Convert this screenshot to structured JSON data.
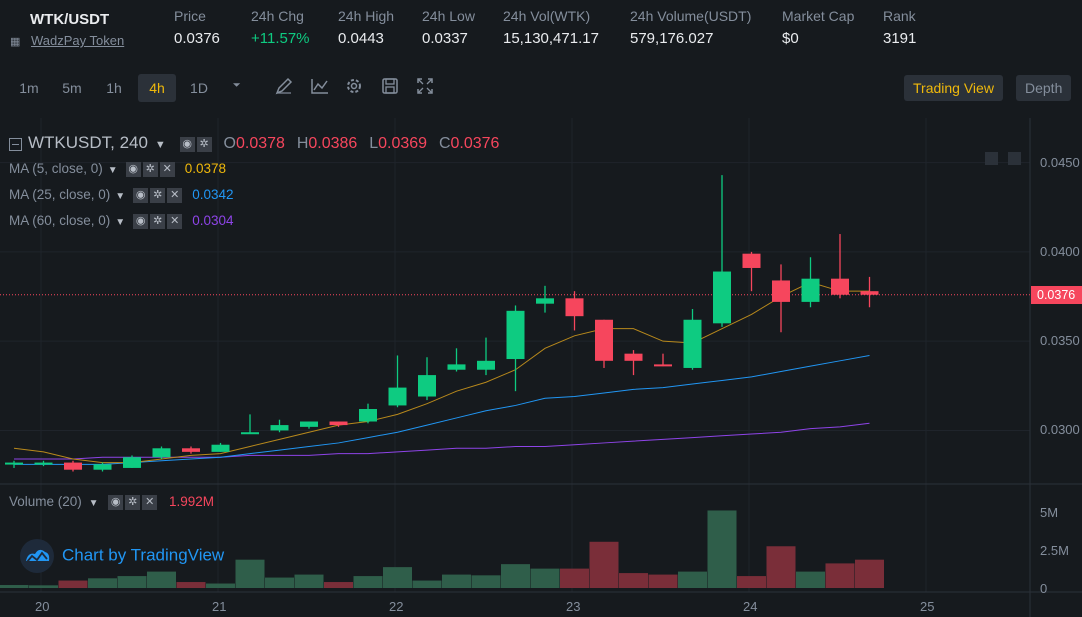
{
  "ticker": {
    "pair": "WTK/USDT",
    "token_name": "WadzPay Token",
    "stats": [
      {
        "label": "Price",
        "value": "0.0376",
        "trend": "neutral"
      },
      {
        "label": "24h Chg",
        "value": "+11.57%",
        "trend": "up"
      },
      {
        "label": "24h High",
        "value": "0.0443",
        "trend": "neutral"
      },
      {
        "label": "24h Low",
        "value": "0.0337",
        "trend": "neutral"
      },
      {
        "label": "24h Vol(WTK)",
        "value": "15,130,471.17",
        "trend": "neutral"
      },
      {
        "label": "24h Volume(USDT)",
        "value": "579,176.027",
        "trend": "neutral"
      },
      {
        "label": "Market Cap",
        "value": "$0",
        "trend": "neutral"
      },
      {
        "label": "Rank",
        "value": "3191",
        "trend": "neutral"
      }
    ]
  },
  "toolbar": {
    "timeframes": [
      "1m",
      "5m",
      "1h",
      "4h",
      "1D"
    ],
    "active_timeframe": "4h",
    "dropdown_icon": "caret-down-icon",
    "tools": [
      "pencil-icon",
      "line-chart-icon",
      "gear-icon",
      "save-icon",
      "expand-icon"
    ],
    "views": [
      "Trading View",
      "Depth"
    ],
    "active_view": "Trading View"
  },
  "legend": {
    "symbol": "WTKUSDT, 240",
    "o_label": "O",
    "o": "0.0378",
    "h_label": "H",
    "h": "0.0386",
    "l_label": "L",
    "l": "0.0369",
    "c_label": "C",
    "c": "0.0376"
  },
  "ma": [
    {
      "label": "MA (5, close, 0)",
      "value": "0.0378",
      "color": "#f0b90b"
    },
    {
      "label": "MA (25, close, 0)",
      "value": "0.0342",
      "color": "#2196f3"
    },
    {
      "label": "MA (60, close, 0)",
      "value": "0.0304",
      "color": "#8e44e8"
    }
  ],
  "volume_legend": {
    "label": "Volume (20)",
    "value": "1.992M"
  },
  "price_axis": [
    "0.0450",
    "0.0400",
    "0.0350",
    "0.0300"
  ],
  "current_price_tag": "0.0376",
  "volume_axis": [
    "5M",
    "2.5M",
    "0"
  ],
  "time_axis": [
    "20",
    "21",
    "22",
    "23",
    "24",
    "25"
  ],
  "brand": "Chart by TradingView",
  "colors": {
    "up": "#0ecb81",
    "down": "#f6465d",
    "accent": "#f0b90b",
    "bg": "#161a1e"
  },
  "chart_data": {
    "type": "candlestick",
    "ylim": [
      0.027,
      0.0475
    ],
    "volume_ylim": [
      0,
      5500000
    ],
    "candles": [
      {
        "o": 0.0281,
        "h": 0.0283,
        "l": 0.0279,
        "c": 0.0282,
        "vol": 200000
      },
      {
        "o": 0.0281,
        "h": 0.0283,
        "l": 0.028,
        "c": 0.0282,
        "vol": 180000
      },
      {
        "o": 0.0282,
        "h": 0.0283,
        "l": 0.0277,
        "c": 0.0278,
        "vol": 500000
      },
      {
        "o": 0.0278,
        "h": 0.0282,
        "l": 0.0277,
        "c": 0.0281,
        "vol": 650000
      },
      {
        "o": 0.0279,
        "h": 0.0286,
        "l": 0.0279,
        "c": 0.0285,
        "vol": 800000
      },
      {
        "o": 0.0285,
        "h": 0.0291,
        "l": 0.0284,
        "c": 0.029,
        "vol": 1100000
      },
      {
        "o": 0.029,
        "h": 0.0291,
        "l": 0.0287,
        "c": 0.0288,
        "vol": 400000
      },
      {
        "o": 0.0288,
        "h": 0.0293,
        "l": 0.0288,
        "c": 0.0292,
        "vol": 300000
      },
      {
        "o": 0.0299,
        "h": 0.0309,
        "l": 0.0298,
        "c": 0.0299,
        "vol": 1900000
      },
      {
        "o": 0.03,
        "h": 0.0306,
        "l": 0.0299,
        "c": 0.0303,
        "vol": 700000
      },
      {
        "o": 0.0302,
        "h": 0.0305,
        "l": 0.0301,
        "c": 0.0305,
        "vol": 900000
      },
      {
        "o": 0.0305,
        "h": 0.0305,
        "l": 0.0302,
        "c": 0.0303,
        "vol": 400000
      },
      {
        "o": 0.0305,
        "h": 0.0315,
        "l": 0.0304,
        "c": 0.0312,
        "vol": 800000
      },
      {
        "o": 0.0314,
        "h": 0.0342,
        "l": 0.0313,
        "c": 0.0324,
        "vol": 1400000
      },
      {
        "o": 0.0319,
        "h": 0.0341,
        "l": 0.0317,
        "c": 0.0331,
        "vol": 500000
      },
      {
        "o": 0.0334,
        "h": 0.0346,
        "l": 0.0333,
        "c": 0.0337,
        "vol": 900000
      },
      {
        "o": 0.0334,
        "h": 0.0352,
        "l": 0.0331,
        "c": 0.0339,
        "vol": 850000
      },
      {
        "o": 0.034,
        "h": 0.037,
        "l": 0.0322,
        "c": 0.0367,
        "vol": 1600000
      },
      {
        "o": 0.0371,
        "h": 0.0381,
        "l": 0.0366,
        "c": 0.0374,
        "vol": 1300000
      },
      {
        "o": 0.0374,
        "h": 0.0378,
        "l": 0.0356,
        "c": 0.0364,
        "vol": 1300000
      },
      {
        "o": 0.0362,
        "h": 0.0362,
        "l": 0.0335,
        "c": 0.0339,
        "vol": 3100000
      },
      {
        "o": 0.0343,
        "h": 0.0345,
        "l": 0.0331,
        "c": 0.0339,
        "vol": 1000000
      },
      {
        "o": 0.0337,
        "h": 0.0343,
        "l": 0.0336,
        "c": 0.0336,
        "vol": 900000
      },
      {
        "o": 0.0335,
        "h": 0.0368,
        "l": 0.0334,
        "c": 0.0362,
        "vol": 1100000
      },
      {
        "o": 0.036,
        "h": 0.0443,
        "l": 0.0358,
        "c": 0.0389,
        "vol": 5200000
      },
      {
        "o": 0.0399,
        "h": 0.04,
        "l": 0.0378,
        "c": 0.0391,
        "vol": 800000
      },
      {
        "o": 0.0384,
        "h": 0.0393,
        "l": 0.0355,
        "c": 0.0372,
        "vol": 2800000
      },
      {
        "o": 0.0372,
        "h": 0.0397,
        "l": 0.0369,
        "c": 0.0385,
        "vol": 1100000
      },
      {
        "o": 0.0385,
        "h": 0.041,
        "l": 0.0374,
        "c": 0.0376,
        "vol": 1650000
      },
      {
        "o": 0.0378,
        "h": 0.0386,
        "l": 0.0369,
        "c": 0.0376,
        "vol": 1900000
      }
    ],
    "ma5": [
      0.029,
      0.0288,
      0.0284,
      0.0282,
      0.0282,
      0.0284,
      0.0286,
      0.0287,
      0.0291,
      0.0295,
      0.0299,
      0.0303,
      0.0305,
      0.0309,
      0.0315,
      0.0322,
      0.0327,
      0.0334,
      0.0346,
      0.0353,
      0.0357,
      0.0357,
      0.035,
      0.0349,
      0.0357,
      0.0365,
      0.0375,
      0.0383,
      0.0378,
      0.0378
    ],
    "ma25": [
      0.0281,
      0.0281,
      0.0281,
      0.0281,
      0.0282,
      0.0283,
      0.0284,
      0.0285,
      0.0287,
      0.0289,
      0.0291,
      0.0293,
      0.0296,
      0.0299,
      0.0303,
      0.0307,
      0.0311,
      0.0314,
      0.0318,
      0.0319,
      0.0321,
      0.0323,
      0.0324,
      0.0326,
      0.0328,
      0.033,
      0.0333,
      0.0336,
      0.0339,
      0.0342
    ],
    "ma60": [
      0.0284,
      0.0284,
      0.0284,
      0.0285,
      0.0285,
      0.0285,
      0.0285,
      0.0285,
      0.0286,
      0.0286,
      0.0286,
      0.0287,
      0.0287,
      0.0288,
      0.0289,
      0.029,
      0.029,
      0.0291,
      0.0291,
      0.0292,
      0.0293,
      0.0294,
      0.0295,
      0.0296,
      0.0297,
      0.0298,
      0.0299,
      0.0301,
      0.0302,
      0.0304
    ]
  }
}
